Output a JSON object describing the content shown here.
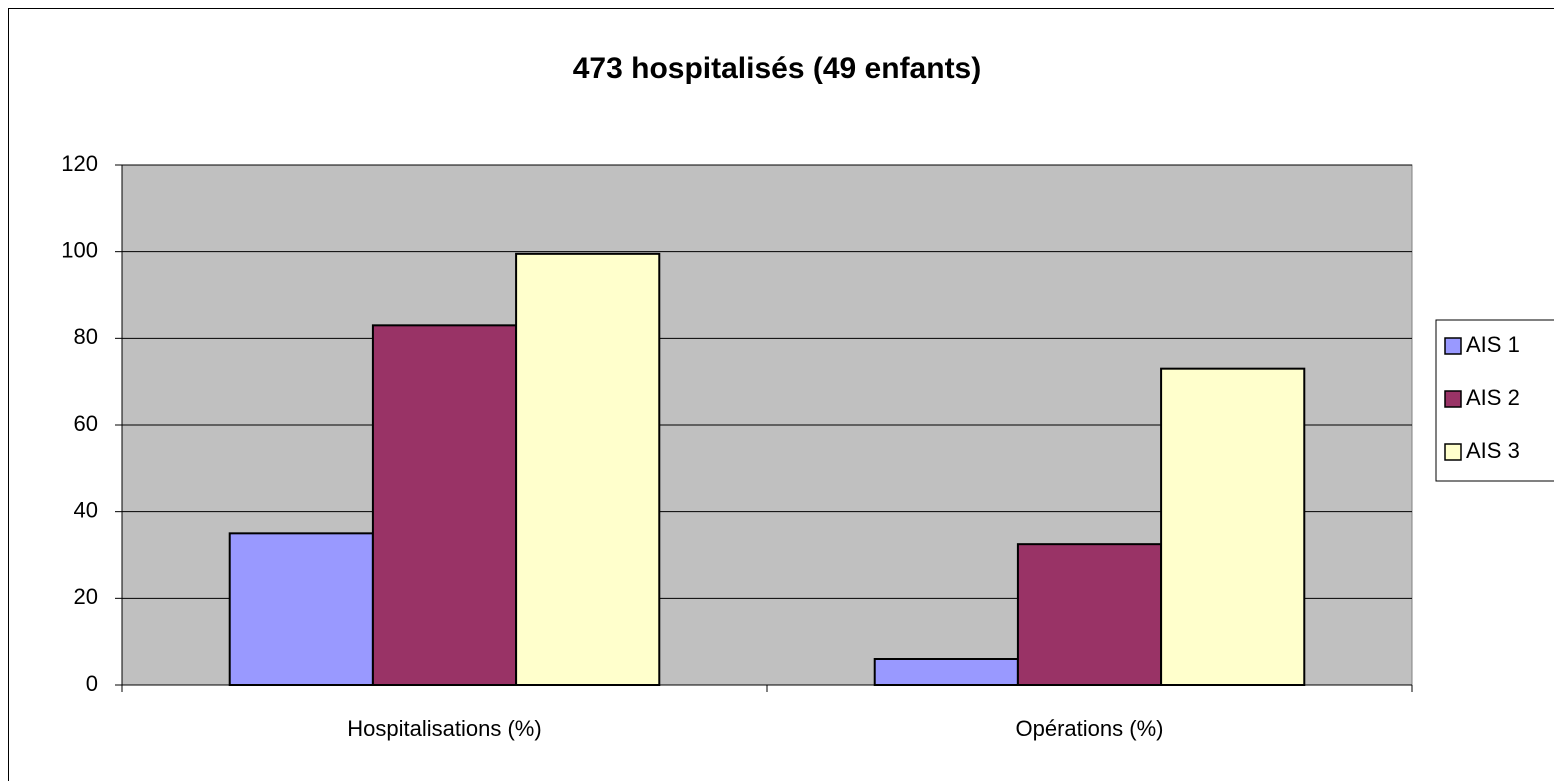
{
  "chart_data": {
    "type": "bar",
    "title": "473 hospitalisés (49 enfants)",
    "categories": [
      "Hospitalisations (%)",
      "Opérations (%)"
    ],
    "series": [
      {
        "name": "AIS 1",
        "color": "#9999ff",
        "values": [
          35,
          6
        ]
      },
      {
        "name": "AIS 2",
        "color": "#993366",
        "values": [
          83,
          32.5
        ]
      },
      {
        "name": "AIS 3",
        "color": "#ffffcc",
        "values": [
          99.5,
          73
        ]
      }
    ],
    "ylim": [
      0,
      120
    ],
    "yticks": [
      0,
      20,
      40,
      60,
      80,
      100,
      120
    ],
    "grid": true,
    "legend": "right"
  }
}
